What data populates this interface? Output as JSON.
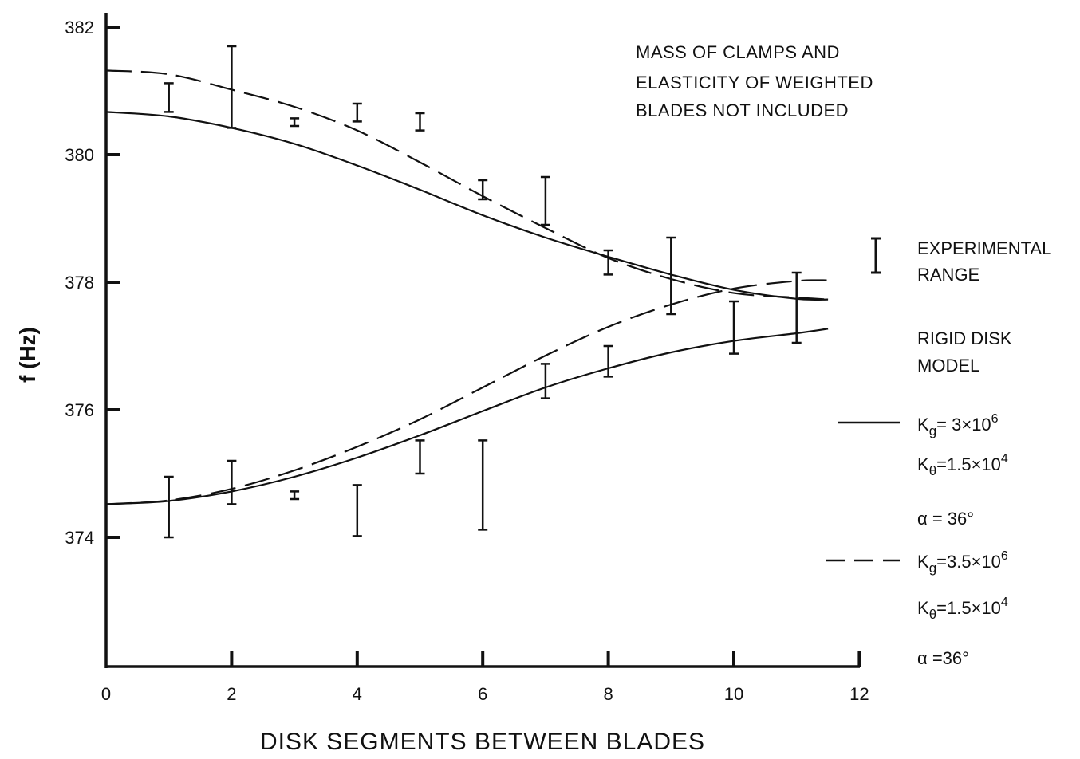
{
  "chart_data": {
    "type": "line",
    "xlabel": "DISK SEGMENTS BETWEEN BLADES",
    "ylabel": "f (Hz)",
    "xlim": [
      0,
      12
    ],
    "ylim": [
      372,
      382
    ],
    "x_ticks": [
      "0",
      "2",
      "4",
      "6",
      "8",
      "10",
      "12"
    ],
    "y_ticks": [
      "374",
      "376",
      "378",
      "380",
      "382"
    ],
    "annotation": [
      "MASS OF CLAMPS AND",
      "ELASTICITY OF WEIGHTED",
      "BLADES NOT INCLUDED"
    ],
    "legend": {
      "experimental": [
        "EXPERIMENTAL",
        "RANGE"
      ],
      "model_title": [
        "RIGID DISK",
        "MODEL"
      ],
      "solid": [
        "K",
        "g",
        "= 3×10",
        "6",
        "K",
        "θ",
        "=1.5×10",
        "4",
        "α = 36°"
      ],
      "dashed": [
        "K",
        "g",
        "=3.5×10",
        "6",
        "K",
        "θ",
        "=1.5×10",
        "4",
        "α =36°"
      ]
    },
    "series": [
      {
        "style": "solid",
        "branch": "upper",
        "x": [
          0,
          1,
          2,
          3,
          4,
          5,
          6,
          7,
          8,
          9,
          10,
          11,
          11.5
        ],
        "y": [
          380.67,
          380.6,
          380.42,
          380.17,
          379.83,
          379.45,
          379.05,
          378.7,
          378.4,
          378.12,
          377.88,
          377.74,
          377.73
        ]
      },
      {
        "style": "dashed",
        "branch": "upper",
        "x": [
          0,
          1,
          2,
          3,
          4,
          5,
          6,
          7,
          8,
          9,
          10,
          11,
          11.5
        ],
        "y": [
          381.32,
          381.26,
          381.02,
          380.75,
          380.38,
          379.88,
          379.35,
          378.85,
          378.38,
          378.05,
          377.83,
          377.76,
          377.73
        ]
      },
      {
        "style": "solid",
        "branch": "lower",
        "x": [
          0,
          1,
          2,
          3,
          4,
          5,
          6,
          7,
          8,
          9,
          10,
          11,
          11.5
        ],
        "y": [
          374.52,
          374.57,
          374.72,
          374.95,
          375.25,
          375.6,
          375.98,
          376.35,
          376.65,
          376.9,
          377.08,
          377.2,
          377.27
        ]
      },
      {
        "style": "dashed",
        "branch": "lower",
        "x": [
          0,
          1,
          2,
          3,
          4,
          5,
          6,
          7,
          8,
          9,
          10,
          11,
          11.5
        ],
        "y": [
          374.52,
          374.58,
          374.76,
          375.05,
          375.42,
          375.85,
          376.35,
          376.85,
          377.3,
          377.65,
          377.9,
          378.02,
          378.03
        ]
      }
    ],
    "error_bars": [
      {
        "x": 1,
        "low": 380.67,
        "high": 381.12
      },
      {
        "x": 2,
        "low": 380.42,
        "high": 381.7
      },
      {
        "x": 3,
        "low": 380.45,
        "high": 380.57
      },
      {
        "x": 4,
        "low": 380.52,
        "high": 380.8
      },
      {
        "x": 5,
        "low": 380.38,
        "high": 380.65
      },
      {
        "x": 6,
        "low": 379.3,
        "high": 379.6
      },
      {
        "x": 7,
        "low": 378.9,
        "high": 379.65
      },
      {
        "x": 8,
        "low": 378.12,
        "high": 378.5
      },
      {
        "x": 9,
        "low": 377.5,
        "high": 378.7
      },
      {
        "x": 10,
        "low": 376.88,
        "high": 377.7
      },
      {
        "x": 11,
        "low": 377.05,
        "high": 378.15
      },
      {
        "x": 1,
        "low": 374.0,
        "high": 374.95
      },
      {
        "x": 2,
        "low": 374.52,
        "high": 375.2
      },
      {
        "x": 3,
        "low": 374.6,
        "high": 374.72
      },
      {
        "x": 4,
        "low": 374.02,
        "high": 374.82
      },
      {
        "x": 5,
        "low": 375.0,
        "high": 375.52
      },
      {
        "x": 6,
        "low": 374.12,
        "high": 375.52
      },
      {
        "x": 7,
        "low": 376.18,
        "high": 376.72
      },
      {
        "x": 8,
        "low": 376.52,
        "high": 377.0
      }
    ]
  }
}
